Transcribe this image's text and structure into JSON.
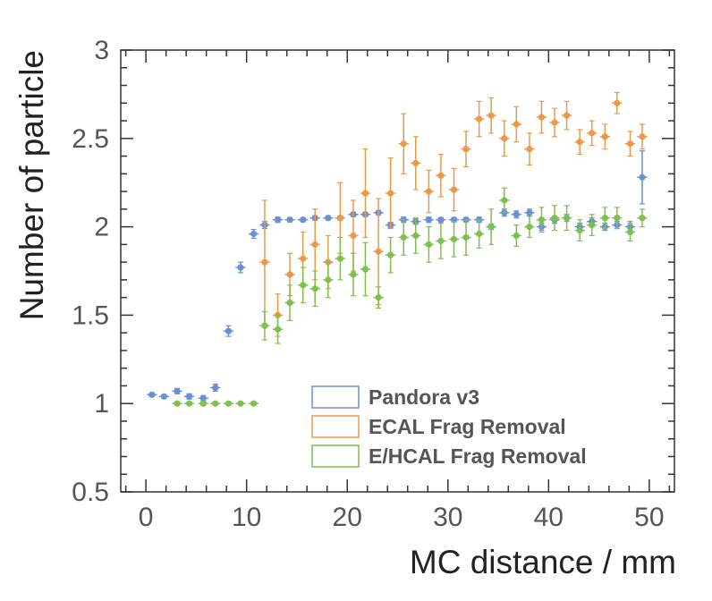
{
  "chart_data": {
    "type": "scatter",
    "title": "",
    "xlabel": "MC distance / mm",
    "ylabel": "Number of particle",
    "xlim": [
      -2.5,
      52.5
    ],
    "ylim": [
      0.5,
      3
    ],
    "xticks": [
      "0",
      "10",
      "20",
      "30",
      "40",
      "50"
    ],
    "yticks": [
      "0.5",
      "1",
      "1.5",
      "2",
      "2.5",
      "3"
    ],
    "grid": false,
    "legend_position": "bottom-right",
    "bin_halfwidth": 0.5,
    "series": [
      {
        "name": "Pandora v3",
        "color": "#6b8fd1",
        "x": [
          0.6,
          1.8,
          3.1,
          4.3,
          5.7,
          6.9,
          8.2,
          9.4,
          10.7,
          11.8,
          13.1,
          14.3,
          15.6,
          16.8,
          18.1,
          19.3,
          20.6,
          21.8,
          23.1,
          24.3,
          25.6,
          26.8,
          28.1,
          29.3,
          30.6,
          31.8,
          33.1,
          34.3,
          35.6,
          36.8,
          38.1,
          39.3,
          40.6,
          41.8,
          43.1,
          44.3,
          45.6,
          46.8,
          48.1,
          49.3
        ],
        "y": [
          1.05,
          1.04,
          1.07,
          1.04,
          1.03,
          1.09,
          1.41,
          1.77,
          1.96,
          2.01,
          2.04,
          2.04,
          2.04,
          2.05,
          2.05,
          2.05,
          2.07,
          2.07,
          2.08,
          2.01,
          2.04,
          2.03,
          2.04,
          2.04,
          2.04,
          2.04,
          2.04,
          2.0,
          2.08,
          2.07,
          2.08,
          2.0,
          2.04,
          2.05,
          2.0,
          2.03,
          2.0,
          2.01,
          2.0,
          2.28
        ],
        "err": [
          0.01,
          0.01,
          0.015,
          0.015,
          0.015,
          0.02,
          0.03,
          0.03,
          0.025,
          0.02,
          0.015,
          0.012,
          0.012,
          0.012,
          0.012,
          0.012,
          0.012,
          0.012,
          0.012,
          0.015,
          0.015,
          0.015,
          0.015,
          0.012,
          0.012,
          0.012,
          0.015,
          0.015,
          0.02,
          0.02,
          0.02,
          0.02,
          0.02,
          0.02,
          0.02,
          0.02,
          0.02,
          0.02,
          0.03,
          0.15
        ]
      },
      {
        "name": "ECAL Frag Removal",
        "color": "#e89a4a",
        "x": [
          11.8,
          13.1,
          14.3,
          15.6,
          16.8,
          18.1,
          19.3,
          20.6,
          21.8,
          23.1,
          24.3,
          25.6,
          26.8,
          28.1,
          29.3,
          30.6,
          31.8,
          33.1,
          34.3,
          35.6,
          36.8,
          38.1,
          39.3,
          40.6,
          41.8,
          43.1,
          44.3,
          45.6,
          46.8,
          48.1,
          49.3
        ],
        "y": [
          1.8,
          1.5,
          1.73,
          1.82,
          1.9,
          1.8,
          2.05,
          1.95,
          2.19,
          1.86,
          2.19,
          2.47,
          2.36,
          2.2,
          2.29,
          2.21,
          2.44,
          2.61,
          2.63,
          2.5,
          2.58,
          2.44,
          2.62,
          2.59,
          2.63,
          2.48,
          2.53,
          2.51,
          2.7,
          2.47,
          2.51
        ],
        "err": [
          0.35,
          0.12,
          0.12,
          0.15,
          0.2,
          0.15,
          0.2,
          0.2,
          0.25,
          0.3,
          0.2,
          0.17,
          0.15,
          0.12,
          0.12,
          0.12,
          0.1,
          0.1,
          0.1,
          0.1,
          0.1,
          0.09,
          0.09,
          0.08,
          0.08,
          0.07,
          0.07,
          0.07,
          0.06,
          0.07,
          0.07
        ]
      },
      {
        "name": "E/HCAL Frag Removal",
        "color": "#7fbf4f",
        "x": [
          3.1,
          4.3,
          5.7,
          6.9,
          8.2,
          9.4,
          10.7,
          11.8,
          13.1,
          14.3,
          15.6,
          16.8,
          18.1,
          19.3,
          20.6,
          21.8,
          23.1,
          24.3,
          25.6,
          26.8,
          28.1,
          29.3,
          30.6,
          31.8,
          33.1,
          34.3,
          35.6,
          36.8,
          38.1,
          39.3,
          40.6,
          41.8,
          43.1,
          44.3,
          45.6,
          46.8,
          48.1,
          49.3
        ],
        "y": [
          1.0,
          1.0,
          1.0,
          1.0,
          1.0,
          1.0,
          1.0,
          1.44,
          1.42,
          1.57,
          1.67,
          1.65,
          1.7,
          1.82,
          1.73,
          1.76,
          1.6,
          1.84,
          1.94,
          1.95,
          1.9,
          1.92,
          1.93,
          1.94,
          1.96,
          2.0,
          2.15,
          1.95,
          2.0,
          2.04,
          2.05,
          2.05,
          1.98,
          2.01,
          2.05,
          2.05,
          1.97,
          2.05
        ],
        "err": [
          0.005,
          0.005,
          0.005,
          0.005,
          0.005,
          0.005,
          0.005,
          0.08,
          0.08,
          0.1,
          0.1,
          0.1,
          0.1,
          0.12,
          0.12,
          0.15,
          0.06,
          0.1,
          0.1,
          0.1,
          0.1,
          0.1,
          0.1,
          0.1,
          0.08,
          0.1,
          0.07,
          0.06,
          0.06,
          0.07,
          0.07,
          0.07,
          0.06,
          0.06,
          0.06,
          0.06,
          0.05,
          0.05
        ]
      }
    ]
  }
}
